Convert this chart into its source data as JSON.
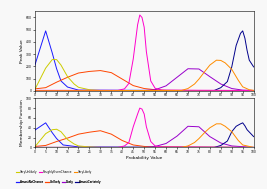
{
  "title_top": "Peak Value",
  "title_bottom": "Membership Function",
  "xlabel": "Probability Value",
  "x_ticks": [
    0,
    5,
    10,
    15,
    20,
    25,
    30,
    35,
    40,
    45,
    50,
    55,
    60,
    65,
    70,
    75,
    80,
    85,
    90,
    95,
    100
  ],
  "series": {
    "AlmostNoChance": {
      "color": "#1a1aff",
      "pv_points": [
        [
          0,
          205
        ],
        [
          5,
          490
        ],
        [
          8,
          310
        ],
        [
          10,
          180
        ],
        [
          12,
          80
        ],
        [
          15,
          30
        ],
        [
          20,
          5
        ],
        [
          100,
          0
        ]
      ],
      "mf_points": [
        [
          0,
          35
        ],
        [
          5,
          50
        ],
        [
          8,
          30
        ],
        [
          10,
          18
        ],
        [
          13,
          5
        ],
        [
          20,
          1
        ],
        [
          100,
          0
        ]
      ]
    },
    "Unlikely": {
      "color": "#ff4500",
      "pv_points": [
        [
          0,
          15
        ],
        [
          5,
          25
        ],
        [
          10,
          70
        ],
        [
          15,
          110
        ],
        [
          20,
          145
        ],
        [
          25,
          158
        ],
        [
          30,
          165
        ],
        [
          35,
          148
        ],
        [
          40,
          95
        ],
        [
          45,
          42
        ],
        [
          50,
          18
        ],
        [
          55,
          8
        ],
        [
          60,
          3
        ],
        [
          100,
          0
        ]
      ],
      "mf_points": [
        [
          0,
          2
        ],
        [
          5,
          4
        ],
        [
          10,
          12
        ],
        [
          15,
          19
        ],
        [
          20,
          27
        ],
        [
          25,
          31
        ],
        [
          30,
          34
        ],
        [
          35,
          27
        ],
        [
          40,
          14
        ],
        [
          45,
          5
        ],
        [
          50,
          2
        ],
        [
          55,
          1
        ],
        [
          100,
          0
        ]
      ]
    },
    "Likely": {
      "color": "#9900cc",
      "pv_points": [
        [
          0,
          0
        ],
        [
          50,
          2
        ],
        [
          55,
          8
        ],
        [
          60,
          40
        ],
        [
          65,
          110
        ],
        [
          70,
          180
        ],
        [
          75,
          178
        ],
        [
          80,
          115
        ],
        [
          85,
          55
        ],
        [
          90,
          18
        ],
        [
          95,
          5
        ],
        [
          100,
          2
        ]
      ],
      "mf_points": [
        [
          0,
          0
        ],
        [
          50,
          0
        ],
        [
          55,
          2
        ],
        [
          60,
          8
        ],
        [
          65,
          23
        ],
        [
          70,
          43
        ],
        [
          75,
          42
        ],
        [
          80,
          22
        ],
        [
          85,
          9
        ],
        [
          90,
          3
        ],
        [
          100,
          0
        ]
      ]
    },
    "AlmostCertainly": {
      "color": "#00008b",
      "pv_points": [
        [
          0,
          0
        ],
        [
          82,
          2
        ],
        [
          85,
          25
        ],
        [
          88,
          75
        ],
        [
          90,
          195
        ],
        [
          92,
          370
        ],
        [
          94,
          470
        ],
        [
          95,
          490
        ],
        [
          96,
          430
        ],
        [
          97,
          330
        ],
        [
          98,
          250
        ],
        [
          100,
          195
        ]
      ],
      "mf_points": [
        [
          0,
          0
        ],
        [
          82,
          0
        ],
        [
          85,
          4
        ],
        [
          88,
          13
        ],
        [
          90,
          32
        ],
        [
          92,
          43
        ],
        [
          94,
          48
        ],
        [
          95,
          50
        ],
        [
          96,
          44
        ],
        [
          97,
          36
        ],
        [
          100,
          22
        ]
      ]
    },
    "VeryUnlikely": {
      "color": "#cccc00",
      "pv_points": [
        [
          0,
          8
        ],
        [
          5,
          185
        ],
        [
          8,
          255
        ],
        [
          10,
          255
        ],
        [
          12,
          210
        ],
        [
          15,
          115
        ],
        [
          18,
          55
        ],
        [
          20,
          28
        ],
        [
          25,
          8
        ],
        [
          30,
          2
        ],
        [
          100,
          0
        ]
      ],
      "mf_points": [
        [
          0,
          1
        ],
        [
          5,
          28
        ],
        [
          8,
          36
        ],
        [
          10,
          37
        ],
        [
          12,
          32
        ],
        [
          15,
          16
        ],
        [
          18,
          7
        ],
        [
          20,
          3
        ],
        [
          25,
          1
        ],
        [
          30,
          0
        ],
        [
          100,
          0
        ]
      ]
    },
    "RoughlyEvenChance": {
      "color": "#ff00cc",
      "pv_points": [
        [
          0,
          3
        ],
        [
          38,
          3
        ],
        [
          41,
          15
        ],
        [
          43,
          60
        ],
        [
          45,
          260
        ],
        [
          47,
          540
        ],
        [
          48,
          620
        ],
        [
          49,
          600
        ],
        [
          50,
          520
        ],
        [
          51,
          320
        ],
        [
          53,
          80
        ],
        [
          55,
          20
        ],
        [
          58,
          5
        ],
        [
          100,
          2
        ]
      ],
      "mf_points": [
        [
          0,
          0
        ],
        [
          38,
          0
        ],
        [
          41,
          3
        ],
        [
          43,
          10
        ],
        [
          45,
          42
        ],
        [
          47,
          68
        ],
        [
          48,
          80
        ],
        [
          49,
          78
        ],
        [
          50,
          68
        ],
        [
          51,
          42
        ],
        [
          53,
          12
        ],
        [
          55,
          3
        ],
        [
          58,
          1
        ],
        [
          100,
          0
        ]
      ]
    },
    "VeryLikely": {
      "color": "#ff8c00",
      "pv_points": [
        [
          0,
          0
        ],
        [
          67,
          2
        ],
        [
          70,
          18
        ],
        [
          73,
          55
        ],
        [
          75,
          95
        ],
        [
          78,
          165
        ],
        [
          80,
          210
        ],
        [
          83,
          250
        ],
        [
          85,
          248
        ],
        [
          87,
          228
        ],
        [
          90,
          175
        ],
        [
          93,
          85
        ],
        [
          95,
          32
        ],
        [
          98,
          8
        ],
        [
          100,
          3
        ]
      ],
      "mf_points": [
        [
          0,
          0
        ],
        [
          67,
          0
        ],
        [
          70,
          3
        ],
        [
          73,
          10
        ],
        [
          75,
          18
        ],
        [
          78,
          32
        ],
        [
          80,
          40
        ],
        [
          83,
          48
        ],
        [
          85,
          48
        ],
        [
          87,
          43
        ],
        [
          90,
          32
        ],
        [
          93,
          14
        ],
        [
          95,
          5
        ],
        [
          100,
          0
        ]
      ]
    }
  },
  "pv_ylim": [
    0,
    650
  ],
  "mf_ylim": [
    0,
    100
  ],
  "background": "#f8f8f8",
  "legend_order": [
    "AlmostNoChance",
    "Unlikely",
    "Likely",
    "AlmostCertainly",
    "VeryUnlikely",
    "RoughlyEvenChance",
    "VeryLikely"
  ]
}
